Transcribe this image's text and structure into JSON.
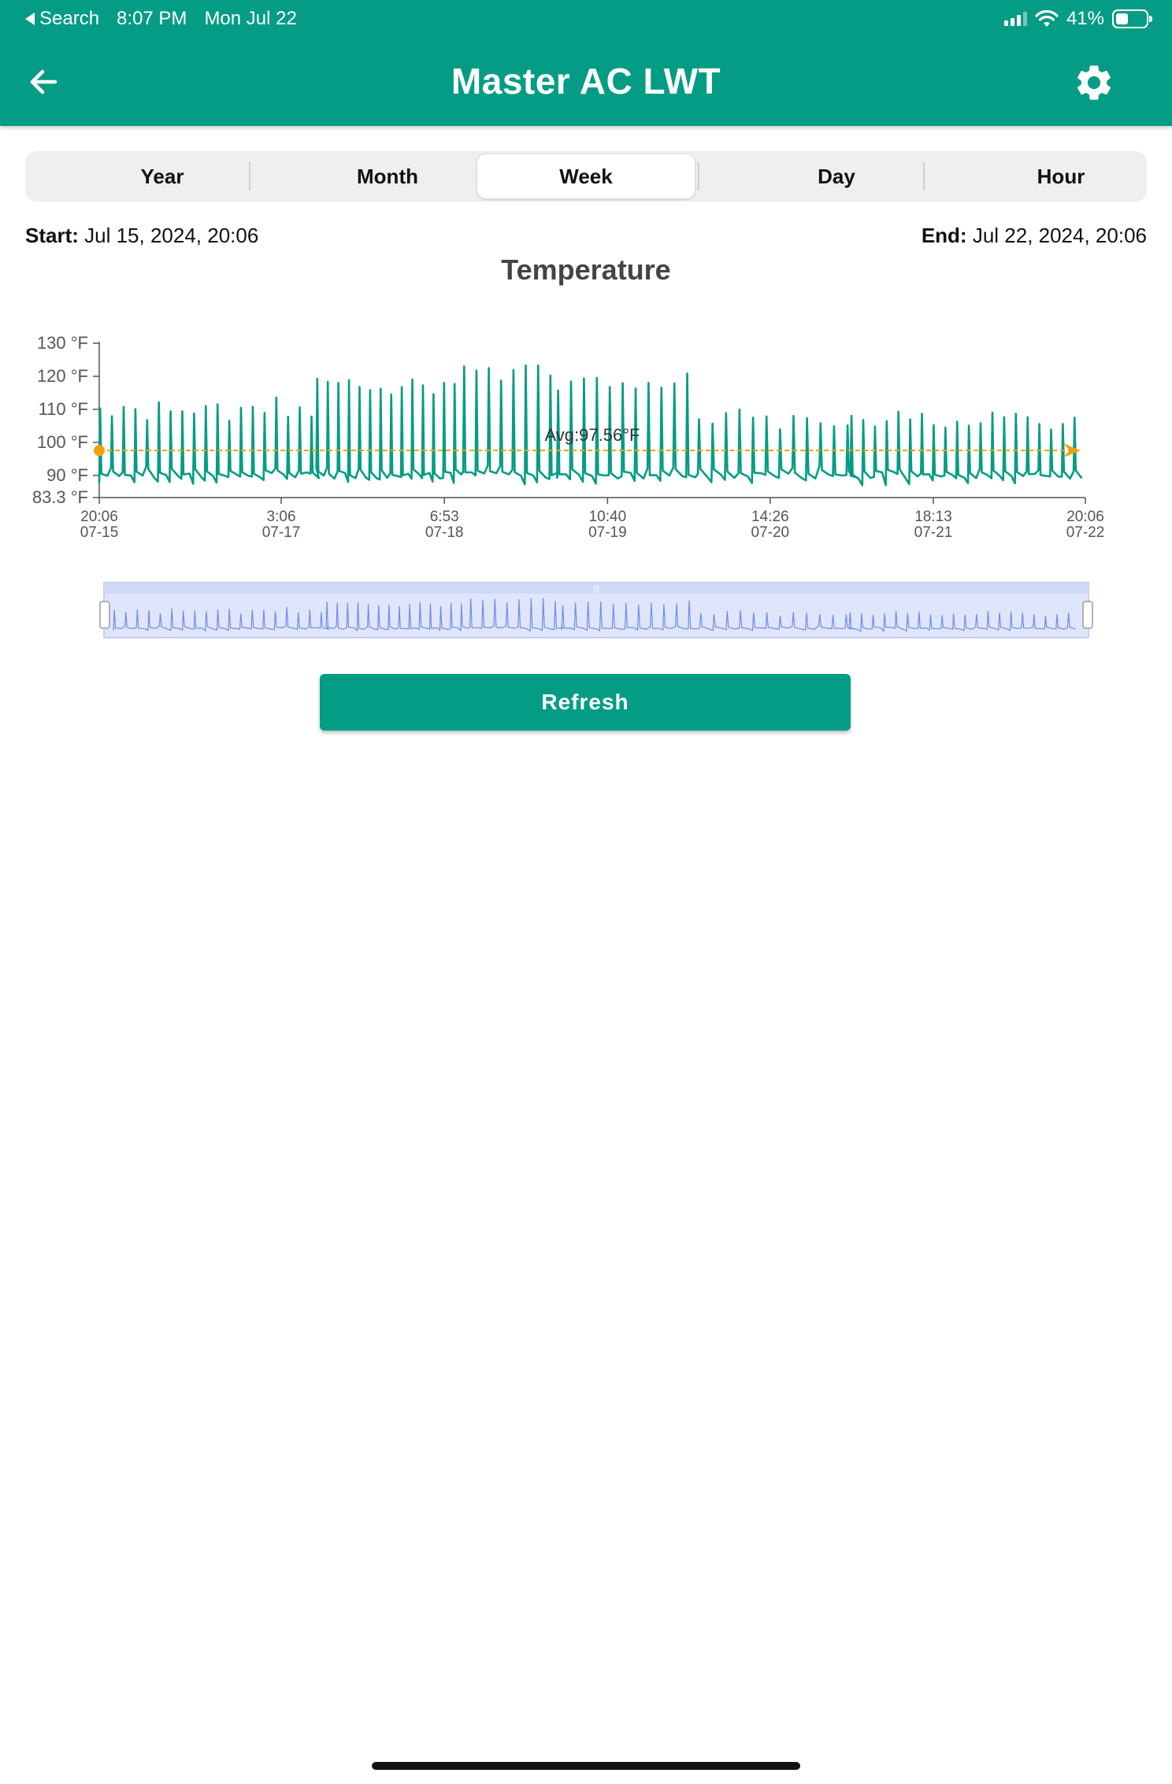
{
  "status_bar": {
    "back_app": "Search",
    "time": "8:07 PM",
    "date": "Mon Jul 22",
    "battery": "41%",
    "battery_level": 0.41,
    "icons": [
      "signal-icon",
      "wifi-icon",
      "battery-icon"
    ]
  },
  "app_bar": {
    "title": "Master AC LWT",
    "back_icon": "arrow-left-icon",
    "settings_icon": "gear-icon"
  },
  "tabs": [
    {
      "label": "Year",
      "active": false
    },
    {
      "label": "Month",
      "active": false
    },
    {
      "label": "Week",
      "active": true
    },
    {
      "label": "Day",
      "active": false
    },
    {
      "label": "Hour",
      "active": false
    }
  ],
  "range": {
    "start_label": "Start:",
    "start_value": "Jul 15, 2024, 20:06",
    "end_label": "End:",
    "end_value": "Jul 22, 2024, 20:06"
  },
  "chart_data": {
    "type": "line",
    "title": "Temperature",
    "ylim": [
      83.3,
      130
    ],
    "y_ticks": [
      "130 °F",
      "120 °F",
      "110 °F",
      "100 °F",
      "90 °F",
      "83.3 °F"
    ],
    "y_tick_values": [
      130,
      120,
      110,
      100,
      90,
      83.3
    ],
    "x_ticks": [
      {
        "time": "20:06",
        "date": "07-15"
      },
      {
        "time": "3:06",
        "date": "07-17"
      },
      {
        "time": "6:53",
        "date": "07-18"
      },
      {
        "time": "10:40",
        "date": "07-19"
      },
      {
        "time": "14:26",
        "date": "07-20"
      },
      {
        "time": "18:13",
        "date": "07-21"
      },
      {
        "time": "20:06",
        "date": "07-22"
      }
    ],
    "x_tick_hours": [
      0,
      31,
      58.8,
      86.6,
      114.3,
      142.1,
      168
    ],
    "x_range_hours": [
      0,
      168
    ],
    "baseline_value": 90,
    "series": [
      {
        "color": "#059c85",
        "cycles": [
          {
            "from_hour": 0,
            "to_hour": 37,
            "peak": 110,
            "period_hours": 2.0
          },
          {
            "from_hour": 37,
            "to_hour": 62,
            "peak": 118,
            "period_hours": 1.8
          },
          {
            "from_hour": 62,
            "to_hour": 78,
            "peak": 121,
            "period_hours": 2.1
          },
          {
            "from_hour": 78,
            "to_hour": 102,
            "peak": 118,
            "period_hours": 2.2
          },
          {
            "from_hour": 102,
            "to_hour": 128,
            "peak": 107,
            "period_hours": 2.3
          },
          {
            "from_hour": 128,
            "to_hour": 168,
            "peak": 107,
            "period_hours": 2.0
          }
        ]
      }
    ],
    "average": {
      "label": "Avg:97.56°F",
      "value": 97.56,
      "color": "#f5a000"
    },
    "grid": false,
    "navigator": true
  },
  "refresh_label": "Refresh"
}
